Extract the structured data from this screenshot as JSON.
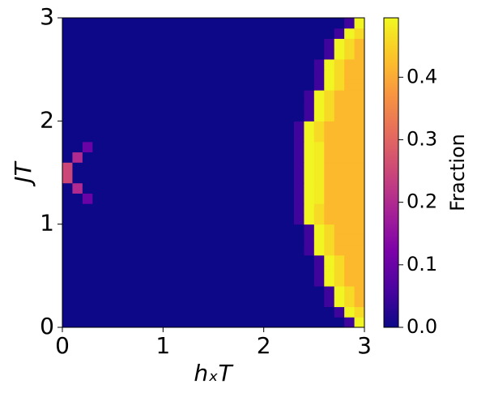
{
  "chart_data": {
    "type": "heatmap",
    "xlabel": "hₓT",
    "ylabel": "JT",
    "colorbar_label": "Fraction",
    "colormap": "plasma",
    "xlim": [
      0,
      3
    ],
    "ylim": [
      0,
      3
    ],
    "xticks": [
      0,
      1,
      2,
      3
    ],
    "yticks": [
      0,
      1,
      2,
      3
    ],
    "clim": [
      0,
      0.495
    ],
    "cticks": [
      {
        "value": 0,
        "label": "0.0"
      },
      {
        "value": 0.1,
        "label": "0.1"
      },
      {
        "value": 0.2,
        "label": "0.2"
      },
      {
        "value": 0.3,
        "label": "0.3"
      },
      {
        "value": 0.4,
        "label": "0.4"
      }
    ],
    "z": [
      [
        0,
        0,
        0,
        0,
        0,
        0,
        0,
        0,
        0,
        0,
        0,
        0,
        0,
        0,
        0,
        0,
        0,
        0,
        0,
        0,
        0,
        0,
        0,
        0,
        0,
        0,
        0,
        0,
        0.05,
        0.49
      ],
      [
        0,
        0,
        0,
        0,
        0,
        0,
        0,
        0,
        0,
        0,
        0,
        0,
        0,
        0,
        0,
        0,
        0,
        0,
        0,
        0,
        0,
        0,
        0,
        0,
        0,
        0,
        0,
        0.05,
        0.49,
        0.46
      ],
      [
        0,
        0,
        0,
        0,
        0,
        0,
        0,
        0,
        0,
        0,
        0,
        0,
        0,
        0,
        0,
        0,
        0,
        0,
        0,
        0,
        0,
        0,
        0,
        0,
        0,
        0,
        0.05,
        0.49,
        0.46,
        0.42
      ],
      [
        0,
        0,
        0,
        0,
        0,
        0,
        0,
        0,
        0,
        0,
        0,
        0,
        0,
        0,
        0,
        0,
        0,
        0,
        0,
        0,
        0,
        0,
        0,
        0,
        0,
        0,
        0.05,
        0.49,
        0.46,
        0.42
      ],
      [
        0,
        0,
        0,
        0,
        0,
        0,
        0,
        0,
        0,
        0,
        0,
        0,
        0,
        0,
        0,
        0,
        0,
        0,
        0,
        0,
        0,
        0,
        0,
        0,
        0,
        0.05,
        0.49,
        0.46,
        0.42,
        0.42
      ],
      [
        0,
        0,
        0,
        0,
        0,
        0,
        0,
        0,
        0,
        0,
        0,
        0,
        0,
        0,
        0,
        0,
        0,
        0,
        0,
        0,
        0,
        0,
        0,
        0,
        0,
        0.05,
        0.49,
        0.46,
        0.42,
        0.42
      ],
      [
        0,
        0,
        0,
        0,
        0,
        0,
        0,
        0,
        0,
        0,
        0,
        0,
        0,
        0,
        0,
        0,
        0,
        0,
        0,
        0,
        0,
        0,
        0,
        0,
        0,
        0.05,
        0.49,
        0.46,
        0.42,
        0.42
      ],
      [
        0,
        0,
        0,
        0,
        0,
        0,
        0,
        0,
        0,
        0,
        0,
        0,
        0,
        0,
        0,
        0,
        0,
        0,
        0,
        0,
        0,
        0,
        0,
        0,
        0.05,
        0.49,
        0.46,
        0.42,
        0.42,
        0.42
      ],
      [
        0,
        0,
        0,
        0,
        0,
        0,
        0,
        0,
        0,
        0,
        0,
        0,
        0,
        0,
        0,
        0,
        0,
        0,
        0,
        0,
        0,
        0,
        0,
        0,
        0.05,
        0.49,
        0.46,
        0.42,
        0.42,
        0.42
      ],
      [
        0,
        0,
        0,
        0,
        0,
        0,
        0,
        0,
        0,
        0,
        0,
        0,
        0,
        0,
        0,
        0,
        0,
        0,
        0,
        0,
        0,
        0,
        0,
        0,
        0.05,
        0.49,
        0.46,
        0.42,
        0.42,
        0.42
      ],
      [
        0,
        0,
        0,
        0,
        0,
        0,
        0,
        0,
        0,
        0,
        0,
        0,
        0,
        0,
        0,
        0,
        0,
        0,
        0,
        0,
        0,
        0,
        0,
        0.05,
        0.49,
        0.46,
        0.42,
        0.42,
        0.42,
        0.42
      ],
      [
        0,
        0,
        0,
        0,
        0,
        0,
        0,
        0,
        0,
        0,
        0,
        0,
        0,
        0,
        0,
        0,
        0,
        0,
        0,
        0,
        0,
        0,
        0,
        0.05,
        0.49,
        0.46,
        0.42,
        0.42,
        0.42,
        0.42
      ],
      [
        0,
        0,
        0.1,
        0,
        0,
        0,
        0,
        0,
        0,
        0,
        0,
        0,
        0,
        0,
        0,
        0,
        0,
        0,
        0,
        0,
        0,
        0,
        0,
        0.05,
        0.49,
        0.48,
        0.42,
        0.42,
        0.42,
        0.42
      ],
      [
        0,
        0.2,
        0,
        0,
        0,
        0,
        0,
        0,
        0,
        0,
        0,
        0,
        0,
        0,
        0,
        0,
        0,
        0,
        0,
        0,
        0,
        0,
        0,
        0.05,
        0.49,
        0.48,
        0.42,
        0.42,
        0.42,
        0.42
      ],
      [
        0.25,
        0,
        0,
        0,
        0,
        0,
        0,
        0,
        0,
        0,
        0,
        0,
        0,
        0,
        0,
        0,
        0,
        0,
        0,
        0,
        0,
        0,
        0,
        0.05,
        0.49,
        0.48,
        0.42,
        0.42,
        0.42,
        0.42
      ],
      [
        0.25,
        0,
        0,
        0,
        0,
        0,
        0,
        0,
        0,
        0,
        0,
        0,
        0,
        0,
        0,
        0,
        0,
        0,
        0,
        0,
        0,
        0,
        0,
        0.05,
        0.49,
        0.48,
        0.42,
        0.42,
        0.42,
        0.42
      ],
      [
        0,
        0.2,
        0,
        0,
        0,
        0,
        0,
        0,
        0,
        0,
        0,
        0,
        0,
        0,
        0,
        0,
        0,
        0,
        0,
        0,
        0,
        0,
        0,
        0.05,
        0.49,
        0.48,
        0.42,
        0.42,
        0.42,
        0.42
      ],
      [
        0,
        0,
        0.1,
        0,
        0,
        0,
        0,
        0,
        0,
        0,
        0,
        0,
        0,
        0,
        0,
        0,
        0,
        0,
        0,
        0,
        0,
        0,
        0,
        0.05,
        0.49,
        0.48,
        0.42,
        0.42,
        0.42,
        0.42
      ],
      [
        0,
        0,
        0,
        0,
        0,
        0,
        0,
        0,
        0,
        0,
        0,
        0,
        0,
        0,
        0,
        0,
        0,
        0,
        0,
        0,
        0,
        0,
        0,
        0.05,
        0.49,
        0.46,
        0.42,
        0.42,
        0.42,
        0.42
      ],
      [
        0,
        0,
        0,
        0,
        0,
        0,
        0,
        0,
        0,
        0,
        0,
        0,
        0,
        0,
        0,
        0,
        0,
        0,
        0,
        0,
        0,
        0,
        0,
        0.05,
        0.49,
        0.46,
        0.42,
        0.42,
        0.42,
        0.42
      ],
      [
        0,
        0,
        0,
        0,
        0,
        0,
        0,
        0,
        0,
        0,
        0,
        0,
        0,
        0,
        0,
        0,
        0,
        0,
        0,
        0,
        0,
        0,
        0,
        0,
        0.05,
        0.49,
        0.46,
        0.42,
        0.42,
        0.42
      ],
      [
        0,
        0,
        0,
        0,
        0,
        0,
        0,
        0,
        0,
        0,
        0,
        0,
        0,
        0,
        0,
        0,
        0,
        0,
        0,
        0,
        0,
        0,
        0,
        0,
        0.05,
        0.49,
        0.46,
        0.42,
        0.42,
        0.42
      ],
      [
        0,
        0,
        0,
        0,
        0,
        0,
        0,
        0,
        0,
        0,
        0,
        0,
        0,
        0,
        0,
        0,
        0,
        0,
        0,
        0,
        0,
        0,
        0,
        0,
        0.05,
        0.49,
        0.46,
        0.42,
        0.42,
        0.42
      ],
      [
        0,
        0,
        0,
        0,
        0,
        0,
        0,
        0,
        0,
        0,
        0,
        0,
        0,
        0,
        0,
        0,
        0,
        0,
        0,
        0,
        0,
        0,
        0,
        0,
        0,
        0.05,
        0.49,
        0.46,
        0.42,
        0.42
      ],
      [
        0,
        0,
        0,
        0,
        0,
        0,
        0,
        0,
        0,
        0,
        0,
        0,
        0,
        0,
        0,
        0,
        0,
        0,
        0,
        0,
        0,
        0,
        0,
        0,
        0,
        0.05,
        0.49,
        0.46,
        0.42,
        0.42
      ],
      [
        0,
        0,
        0,
        0,
        0,
        0,
        0,
        0,
        0,
        0,
        0,
        0,
        0,
        0,
        0,
        0,
        0,
        0,
        0,
        0,
        0,
        0,
        0,
        0,
        0,
        0.05,
        0.49,
        0.46,
        0.42,
        0.42
      ],
      [
        0,
        0,
        0,
        0,
        0,
        0,
        0,
        0,
        0,
        0,
        0,
        0,
        0,
        0,
        0,
        0,
        0,
        0,
        0,
        0,
        0,
        0,
        0,
        0,
        0,
        0,
        0.05,
        0.49,
        0.46,
        0.42
      ],
      [
        0,
        0,
        0,
        0,
        0,
        0,
        0,
        0,
        0,
        0,
        0,
        0,
        0,
        0,
        0,
        0,
        0,
        0,
        0,
        0,
        0,
        0,
        0,
        0,
        0,
        0,
        0.05,
        0.49,
        0.46,
        0.42
      ],
      [
        0,
        0,
        0,
        0,
        0,
        0,
        0,
        0,
        0,
        0,
        0,
        0,
        0,
        0,
        0,
        0,
        0,
        0,
        0,
        0,
        0,
        0,
        0,
        0,
        0,
        0,
        0,
        0.05,
        0.49,
        0.46
      ],
      [
        0,
        0,
        0,
        0,
        0,
        0,
        0,
        0,
        0,
        0,
        0,
        0,
        0,
        0,
        0,
        0,
        0,
        0,
        0,
        0,
        0,
        0,
        0,
        0,
        0,
        0,
        0,
        0,
        0.05,
        0.49
      ]
    ]
  }
}
